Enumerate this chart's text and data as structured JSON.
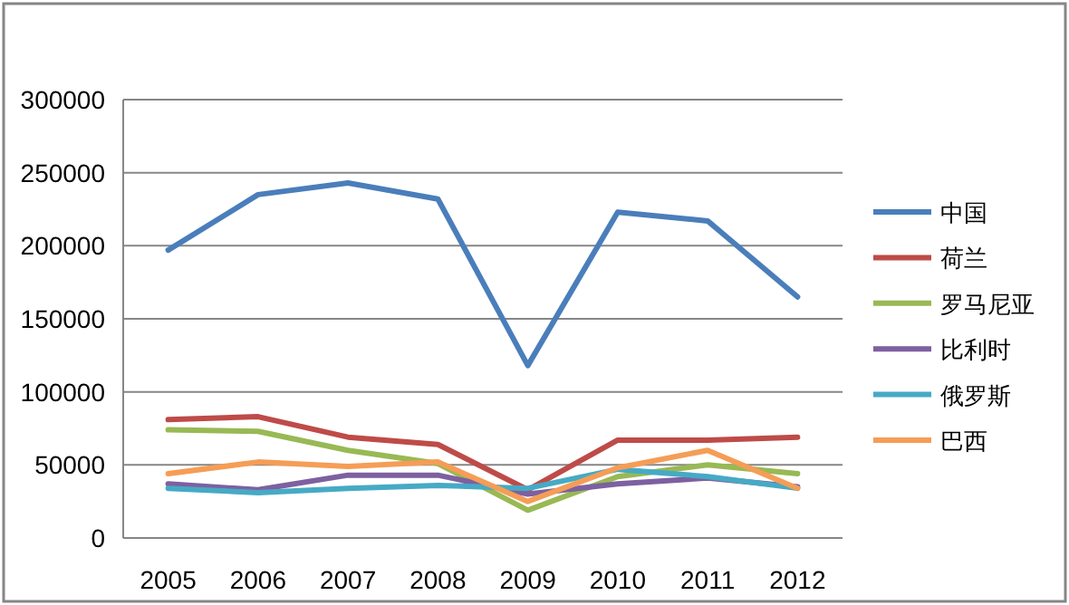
{
  "chart_data": {
    "type": "line",
    "categories": [
      "2005",
      "2006",
      "2007",
      "2008",
      "2009",
      "2010",
      "2011",
      "2012"
    ],
    "series": [
      {
        "name": "中国",
        "color": "#4a7ebb",
        "values": [
          197000,
          235000,
          243000,
          232000,
          118000,
          223000,
          217000,
          165000
        ]
      },
      {
        "name": "荷兰",
        "color": "#be4b48",
        "values": [
          81000,
          83000,
          69000,
          64000,
          33000,
          67000,
          67000,
          69000
        ]
      },
      {
        "name": "罗马尼亚",
        "color": "#98b954",
        "values": [
          74000,
          73000,
          60000,
          51000,
          19000,
          42000,
          50000,
          44000
        ]
      },
      {
        "name": "比利时",
        "color": "#7d60a0",
        "values": [
          37000,
          33000,
          43000,
          43000,
          30000,
          37000,
          41000,
          35000
        ]
      },
      {
        "name": "俄罗斯",
        "color": "#46aac5",
        "values": [
          34000,
          31000,
          34000,
          36000,
          34000,
          47000,
          42000,
          34000
        ]
      },
      {
        "name": "巴西",
        "color": "#f59d56",
        "values": [
          44000,
          52000,
          49000,
          52000,
          25000,
          48000,
          60000,
          34000
        ]
      }
    ],
    "ylim": [
      0,
      300000
    ],
    "yticks": [
      0,
      50000,
      100000,
      150000,
      200000,
      250000,
      300000
    ],
    "grid": "y",
    "legend": "right",
    "marker": "none",
    "line_style": "solid"
  }
}
